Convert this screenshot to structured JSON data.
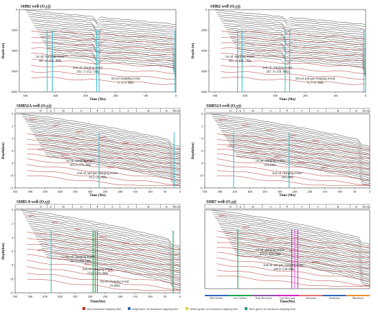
{
  "colors": {
    "background": "#ffffff",
    "isotherm": "#b0302c",
    "burial_line": "#222222",
    "charging_line": "#1aa5b5",
    "cyan_bar": "#36c0d0",
    "green_bar": "#19a24a",
    "magenta_bar": "#d020c0",
    "pink_bar": "#e060d8",
    "orange_bar": "#ee8a2a",
    "blue_marker": "#2b5fb8",
    "annotation": "#222222",
    "iso_label": "#b0302c"
  },
  "legend": {
    "items": [
      {
        "label": "Gas inclusions trapping time",
        "color": "#cc2222"
      },
      {
        "label": "Bright-blue oil inclusions trapping time",
        "color": "#2b5fb8"
      },
      {
        "label": "Yellow green oil inclusions trapping time",
        "color": "#e0d020"
      },
      {
        "label": "Blue-green oil inclusions trapping time",
        "color": "#1a9a8a"
      }
    ]
  },
  "chart_data": [
    {
      "type": "burial-history",
      "panel_title": "SHB2 well (O₂yj)",
      "ylabel": "Depth (m)",
      "xlabel": "Time (Ma)",
      "x_ticks": [
        500,
        400,
        300,
        200,
        100,
        0
      ],
      "y_ticks": [
        0,
        2000,
        4000,
        6000,
        8000
      ],
      "events": [
        {
          "text1": "1st oil charging event:",
          "text2": "427. 2~403. 8Ma"
        },
        {
          "text1": "2nd oil charging event:",
          "text2": "263. 1~252. 5Ma"
        },
        {
          "text1": "3rd oil charging event:",
          "text2": "2. 1~3. 9Ma"
        }
      ],
      "charge_bars_ma": [
        427,
        410,
        263,
        255,
        3
      ]
    },
    {
      "type": "burial-history",
      "panel_title": "SHB2 well (O₂yj)",
      "ylabel": "Depth (m)",
      "xlabel": "Time (Ma)",
      "x_ticks": [
        500,
        400,
        300,
        200,
        100,
        0
      ],
      "y_ticks": [
        0,
        2000,
        4000,
        6000,
        8000
      ],
      "events": [
        {
          "text1": "1st oil charging event:",
          "text2": "425. 1~408. 7Ma"
        },
        {
          "text1": "2nd oil charging event:",
          "text2": "267. 6~250. 8Ma"
        },
        {
          "text1": "3rd oil and gas charging event:",
          "text2": "9. 7~0. 3Ma"
        }
      ],
      "charge_bars_ma": [
        425,
        410,
        267,
        252,
        6
      ]
    },
    {
      "type": "burial-history",
      "panel_title": "SHB52A well (O₂yj)",
      "ylabel": "Depth(km)",
      "xlabel": "Time (Ma)",
      "periods": [
        "O",
        "S",
        "D",
        "C",
        "P",
        "T",
        "J",
        "K",
        "E",
        "N+Q"
      ],
      "x_ticks": [
        550,
        500,
        450,
        400,
        350,
        300,
        250,
        200,
        150,
        100,
        50,
        0
      ],
      "y_ticks": [
        0,
        2,
        4,
        6,
        8,
        10,
        12
      ],
      "iso_labels": [
        "100°C",
        "110°C",
        "130°C",
        "140°C",
        "150°C",
        "170°C",
        "180°C",
        "190°C",
        "120°C"
      ],
      "events": [
        {
          "text1": "1st oil charging event:",
          "text2": "265.0~276.4Ma"
        },
        {
          "text1": "2nd oil and gas charging event:",
          "text2": "19.5~21.2Ma"
        }
      ],
      "charge_bars_ma": [
        270,
        20
      ]
    },
    {
      "type": "burial-history",
      "panel_title": "SHB52A well (O₂yj)",
      "ylabel": "Depth(km)",
      "xlabel": "Time (Ma)",
      "periods": [
        "O",
        "S",
        "D",
        "C",
        "P",
        "T",
        "J",
        "K",
        "E",
        "N+Q"
      ],
      "x_ticks": [
        550,
        500,
        450,
        400,
        350,
        300,
        250,
        200,
        150,
        100,
        50,
        0
      ],
      "y_ticks": [
        0,
        2,
        4,
        6,
        8,
        10,
        12
      ],
      "iso_labels": [
        "100°C",
        "110°C",
        "120°C",
        "130°C",
        "140°C",
        "150°C",
        "160°C",
        "170°C",
        "180°C",
        "190°C"
      ],
      "events": [
        {
          "text1": "1st oil charging event:",
          "text2": "454.5Ma"
        },
        {
          "text1": "2nd oil charging event:",
          "text2": "269.2Ma"
        }
      ],
      "charge_bars_ma": [
        454,
        269
      ]
    },
    {
      "type": "burial-history",
      "panel_title": "SHB5-8 well (O₂yj)",
      "ylabel": "Depth(km)",
      "xlabel": "Time(Ma)",
      "periods": [
        "O",
        "S",
        "D",
        "C",
        "P",
        "T",
        "J",
        "K",
        "E",
        "N+Q"
      ],
      "x_ticks": [
        550,
        500,
        450,
        400,
        350,
        300,
        250,
        200,
        150,
        100,
        50,
        0
      ],
      "y_ticks": [
        0,
        2,
        4,
        6,
        8,
        10,
        12
      ],
      "iso_labels": [
        "40°C",
        "60°C",
        "80°C",
        "100°C",
        "120°C",
        "140°C",
        "160°C",
        "180°C",
        "190°C"
      ],
      "events": [
        {
          "text1": "1st oil charging event:",
          "text2": "426.0~432.1Ma"
        },
        {
          "text1": "2nd oil charging event:",
          "text2": "274.7~291.8Ma"
        },
        {
          "text1": "3rd oil charging event:",
          "text2": "23.6Ma"
        }
      ],
      "charge_bars_ma": [
        430,
        290,
        283,
        276,
        23
      ]
    },
    {
      "type": "burial-history",
      "panel_title": "SHB7 well (O₂yj)",
      "xlabel": "Time(Ma)",
      "periods": [
        "O",
        "S",
        "D",
        "C",
        "P",
        "T",
        "J",
        "K",
        "E",
        "N+Q"
      ],
      "era_labels": [
        "Mid Caledon.",
        "Late Caledon.",
        "Early Hercynian",
        "Late Hercynian",
        "Indosinian",
        "Yanshanian",
        "Himalayan"
      ],
      "era_colors": [
        "#2b5fb8",
        "#19a24a",
        "#8a4fa0",
        "#d020c0",
        "#e07070",
        "#2b5fb8",
        "#ee8a2a"
      ],
      "iso_labels": [
        "100°C",
        "120°C",
        "140°C",
        "160°C",
        "200°C"
      ],
      "events": [
        {
          "text1": "1st oil charging event:",
          "text2": "457.2~424.1Ma"
        },
        {
          "text1": "2nd oil and gas charging event:",
          "text2": "260.0~236.6Ma"
        }
      ],
      "charge_bars_ma": [
        440,
        260,
        250,
        240
      ]
    }
  ]
}
